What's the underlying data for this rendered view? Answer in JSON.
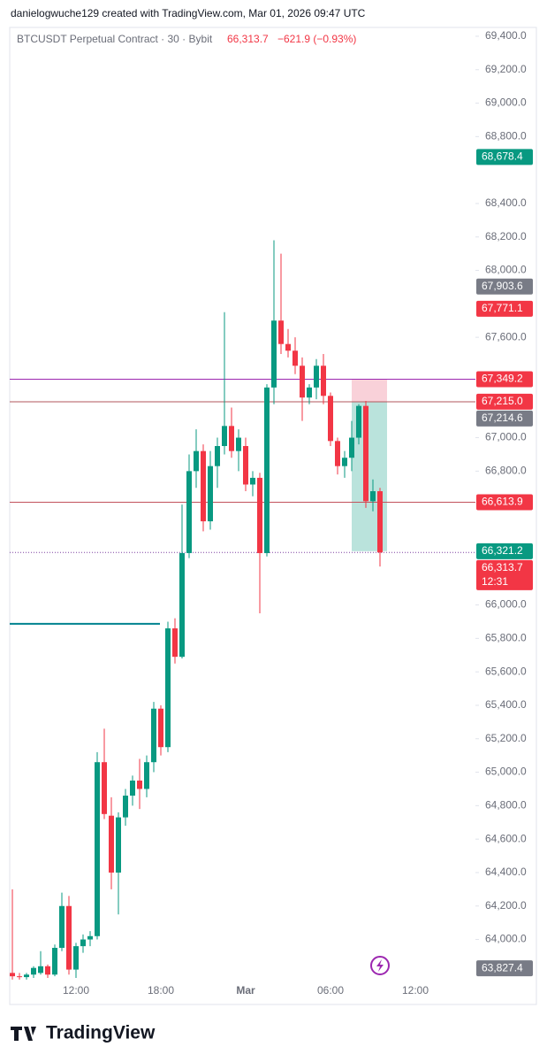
{
  "header": "danielogwuche129 created with TradingView.com, Mar 01, 2026 09:47 UTC",
  "footer": "TradingView",
  "chart_data": {
    "type": "candlestick",
    "legend": {
      "symbol": "BTCUSDT Perpetual Contract · 30 · Bybit",
      "price": "66,313.7",
      "change": "−621.9 (−0.93%)"
    },
    "up_color": "#089981",
    "down_color": "#f23645",
    "categories": [
      null,
      null,
      null,
      null,
      null,
      null,
      null,
      null,
      null,
      "12:00",
      null,
      null,
      null,
      null,
      null,
      null,
      null,
      null,
      null,
      null,
      null,
      "18:00",
      null,
      null,
      null,
      null,
      null,
      null,
      null,
      null,
      null,
      null,
      null,
      "Mar",
      null,
      null,
      null,
      null,
      null,
      null,
      null,
      null,
      null,
      null,
      null,
      "06:00",
      null,
      null,
      null,
      null,
      null,
      null,
      null,
      null,
      null,
      null,
      null,
      "12:00",
      null,
      null
    ],
    "open": [
      63800,
      63780,
      63775,
      63790,
      63800,
      63840,
      63790,
      63950,
      64200,
      63820,
      63960,
      64000,
      64020,
      65060,
      64740,
      64400,
      64730,
      64860,
      64950,
      64900,
      65060,
      65380,
      65150,
      65860,
      65690,
      66310,
      66800,
      66920,
      66500,
      66830,
      66950,
      67070,
      66920,
      66950,
      66720,
      66760,
      66310,
      67300,
      67700,
      67560,
      67520,
      67430,
      67240,
      67300,
      67430,
      67250,
      66980,
      66830,
      66880,
      67000,
      67190,
      66620,
      66680,
      null,
      null,
      null,
      null,
      null,
      null,
      null
    ],
    "high": [
      64300,
      63800,
      63800,
      63840,
      63930,
      63850,
      63970,
      64280,
      64260,
      63980,
      64030,
      64050,
      65120,
      65260,
      64850,
      64760,
      64900,
      64980,
      65080,
      65100,
      65420,
      65400,
      65900,
      65920,
      66600,
      66900,
      67050,
      66960,
      66920,
      67000,
      67750,
      67180,
      67050,
      67000,
      66800,
      66790,
      67320,
      68180,
      68100,
      67650,
      67600,
      67480,
      67320,
      67470,
      67500,
      67270,
      67000,
      66920,
      67100,
      67200,
      67220,
      66750,
      66700,
      null,
      null,
      null,
      null,
      null,
      null,
      null
    ],
    "low": [
      63760,
      63760,
      63760,
      63770,
      63790,
      63770,
      63780,
      63930,
      63790,
      63770,
      63920,
      63960,
      64000,
      64720,
      64300,
      64150,
      64680,
      64800,
      64780,
      64850,
      65000,
      65100,
      65120,
      65650,
      65680,
      66280,
      66700,
      66440,
      66450,
      66700,
      66900,
      66880,
      66800,
      66680,
      66650,
      65950,
      66290,
      67200,
      67500,
      67480,
      67380,
      67100,
      67200,
      67230,
      67200,
      66950,
      66780,
      66760,
      66800,
      66960,
      66580,
      66560,
      66230,
      null,
      null,
      null,
      null,
      null,
      null,
      null
    ],
    "close": [
      63780,
      63775,
      63790,
      63830,
      63840,
      63790,
      63950,
      64200,
      63820,
      63960,
      64000,
      64020,
      65060,
      64750,
      64400,
      64730,
      64860,
      64950,
      64900,
      65060,
      65380,
      65150,
      65860,
      65690,
      66310,
      66800,
      66920,
      66500,
      66830,
      66950,
      67070,
      66920,
      67000,
      66720,
      66760,
      66310,
      67300,
      67700,
      67560,
      67520,
      67430,
      67240,
      67300,
      67430,
      67250,
      66980,
      66830,
      66880,
      67000,
      67190,
      66620,
      66680,
      66313.7,
      null,
      null,
      null,
      null,
      null,
      null,
      null
    ],
    "ylim": [
      63740,
      69450
    ],
    "yticks": [
      {
        "value": 64000,
        "label": "64,000.0"
      },
      {
        "value": 64200,
        "label": "64,200.0"
      },
      {
        "value": 64400,
        "label": "64,400.0"
      },
      {
        "value": 64600,
        "label": "64,600.0"
      },
      {
        "value": 64800,
        "label": "64,800.0"
      },
      {
        "value": 65000,
        "label": "65,000.0"
      },
      {
        "value": 65200,
        "label": "65,200.0"
      },
      {
        "value": 65400,
        "label": "65,400.0"
      },
      {
        "value": 65600,
        "label": "65,600.0"
      },
      {
        "value": 65800,
        "label": "65,800.0"
      },
      {
        "value": 66000,
        "label": "66,000.0"
      },
      {
        "value": 66800,
        "label": "66,800.0"
      },
      {
        "value": 67000,
        "label": "67,000.0"
      },
      {
        "value": 67600,
        "label": "67,600.0"
      },
      {
        "value": 68000,
        "label": "68,000.0"
      },
      {
        "value": 68200,
        "label": "68,200.0"
      },
      {
        "value": 68400,
        "label": "68,400.0"
      },
      {
        "value": 68800,
        "label": "68,800.0"
      },
      {
        "value": 69000,
        "label": "69,000.0"
      },
      {
        "value": 69200,
        "label": "69,200.0"
      },
      {
        "value": 69400,
        "label": "69,400.0"
      }
    ],
    "hlines": [
      {
        "value": 67349.2,
        "color": "#9c27b0",
        "style": "solid"
      },
      {
        "value": 67214.6,
        "color": "#b2575c",
        "style": "solid"
      },
      {
        "value": 66613.9,
        "color": "#c2525c",
        "style": "solid"
      },
      {
        "value": 66313.7,
        "color": "#7b3fa0",
        "style": "dotted"
      },
      {
        "value": 65887,
        "color": "#00838f",
        "style": "solid"
      }
    ],
    "position": {
      "stop": 67349.2,
      "entry": 67214.6,
      "target": 66321.2,
      "stop_color": "#f8c6cf",
      "target_color": "#a9dcd3"
    },
    "price_labels": [
      {
        "value": 68678.4,
        "label": "68,678.4",
        "color": "#089981"
      },
      {
        "value": 67903.6,
        "label": "67,903.6",
        "color": "#787b86"
      },
      {
        "value": 67771.1,
        "label": "67,771.1",
        "color": "#f23645"
      },
      {
        "value": 67349.2,
        "label": "67,349.2",
        "color": "#f23645"
      },
      {
        "value": 67215.0,
        "label": "67,215.0",
        "color": "#f23645"
      },
      {
        "value": 67214.6,
        "label": "67,214.6",
        "color": "#787b86"
      },
      {
        "value": 66613.9,
        "label": "66,613.9",
        "color": "#f23645"
      },
      {
        "value": 66321.2,
        "label": "66,321.2",
        "color": "#089981"
      },
      {
        "value": 66313.7,
        "label": "66,313.7",
        "color": "#f23645",
        "countdown": "12:31"
      },
      {
        "value": 63827.4,
        "label": "63,827.4",
        "color": "#787b86"
      }
    ]
  }
}
